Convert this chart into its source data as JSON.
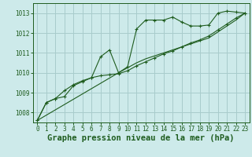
{
  "title": "Graphe pression niveau de la mer (hPa)",
  "background_color": "#cdeaea",
  "grid_color": "#a8cccc",
  "line_color": "#1e5c1e",
  "xlim": [
    -0.5,
    23.5
  ],
  "ylim": [
    1007.5,
    1013.5
  ],
  "yticks": [
    1008,
    1009,
    1010,
    1011,
    1012,
    1013
  ],
  "xticks": [
    0,
    1,
    2,
    3,
    4,
    5,
    6,
    7,
    8,
    9,
    10,
    11,
    12,
    13,
    14,
    15,
    16,
    17,
    18,
    19,
    20,
    21,
    22,
    23
  ],
  "line1_x": [
    0,
    1,
    2,
    3,
    4,
    5,
    6,
    7,
    8,
    9,
    10,
    11,
    12,
    13,
    14,
    15,
    16,
    17,
    18,
    19,
    20,
    21,
    22,
    23
  ],
  "line1_y": [
    1007.6,
    1008.5,
    1008.7,
    1008.8,
    1009.35,
    1009.55,
    1009.75,
    1010.8,
    1011.15,
    1010.0,
    1010.3,
    1012.2,
    1012.65,
    1012.65,
    1012.65,
    1012.8,
    1012.55,
    1012.35,
    1012.35,
    1012.4,
    1013.0,
    1013.1,
    1013.05,
    1013.0
  ],
  "line2_x": [
    0,
    1,
    2,
    3,
    4,
    5,
    6,
    7,
    8,
    9,
    10,
    11,
    12,
    13,
    14,
    15,
    16,
    17,
    18,
    19,
    20,
    21,
    22,
    23
  ],
  "line2_y": [
    1007.6,
    1008.5,
    1008.7,
    1009.1,
    1009.4,
    1009.6,
    1009.75,
    1009.85,
    1009.9,
    1009.95,
    1010.1,
    1010.35,
    1010.55,
    1010.75,
    1010.95,
    1011.1,
    1011.3,
    1011.5,
    1011.65,
    1011.85,
    1012.15,
    1012.45,
    1012.75,
    1013.0
  ],
  "line3_x": [
    0,
    9,
    10,
    11,
    12,
    13,
    14,
    15,
    16,
    17,
    18,
    19,
    20,
    21,
    22,
    23
  ],
  "line3_y": [
    1007.6,
    1010.0,
    1010.25,
    1010.5,
    1010.7,
    1010.85,
    1011.0,
    1011.15,
    1011.3,
    1011.45,
    1011.6,
    1011.75,
    1012.05,
    1012.35,
    1012.65,
    1013.0
  ],
  "title_fontsize": 7.5,
  "tick_fontsize": 5.5
}
